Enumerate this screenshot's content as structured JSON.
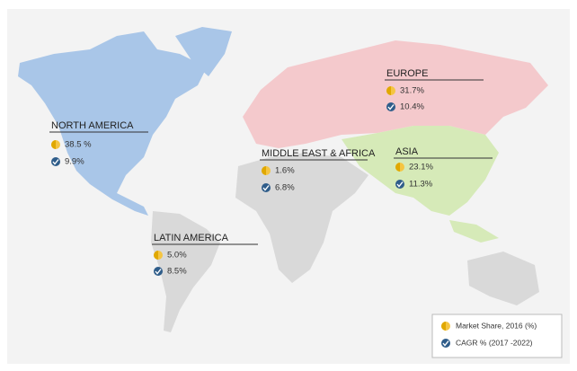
{
  "regions": [
    {
      "name": "NORTH AMERICA",
      "market_share": "38.5 %",
      "cagr": "9.9%"
    },
    {
      "name": "EUROPE",
      "market_share": "31.7%",
      "cagr": "10.4%"
    },
    {
      "name": "MIDDLE EAST & AFRICA",
      "market_share": "1.6%",
      "cagr": "6.8%"
    },
    {
      "name": "ASIA",
      "market_share": "23.1%",
      "cagr": "11.3%"
    },
    {
      "name": "LATIN AMERICA",
      "market_share": "5.0%",
      "cagr": "8.5%"
    }
  ],
  "legend": {
    "market_share": "Market Share, 2016 (%)",
    "cagr": "CAGR % (2017 -2022)"
  }
}
